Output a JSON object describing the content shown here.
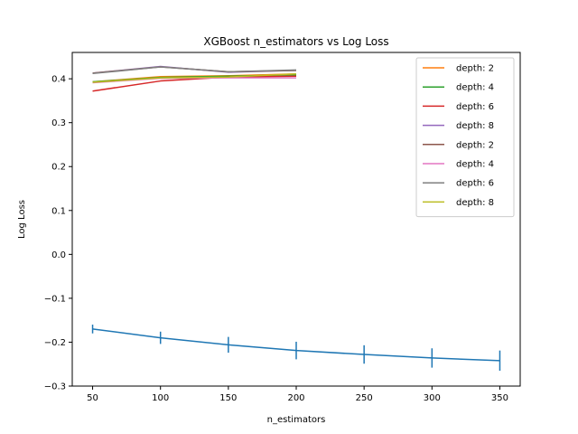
{
  "chart_data": {
    "type": "line",
    "title": "XGBoost n_estimators vs Log Loss",
    "xlabel": "n_estimators",
    "ylabel": "Log Loss",
    "xlim": [
      35,
      365
    ],
    "ylim": [
      -0.3,
      0.46
    ],
    "xticks": [
      50,
      100,
      150,
      200,
      250,
      300,
      350
    ],
    "xtick_labels": [
      "50",
      "100",
      "150",
      "200",
      "250",
      "300",
      "350"
    ],
    "yticks": [
      -0.3,
      -0.2,
      -0.1,
      0.0,
      0.1,
      0.2,
      0.3,
      0.4
    ],
    "ytick_labels": [
      "−0.3",
      "−0.2",
      "−0.1",
      "0.0",
      "0.1",
      "0.2",
      "0.3",
      "0.4"
    ],
    "grid": false,
    "legend_position": "top-right",
    "errorbar_series": {
      "color": "#1f77b4",
      "x": [
        50,
        100,
        150,
        200,
        250,
        300,
        350
      ],
      "y": [
        -0.17,
        -0.19,
        -0.206,
        -0.219,
        -0.228,
        -0.236,
        -0.242
      ],
      "err": [
        0.01,
        0.014,
        0.018,
        0.02,
        0.021,
        0.022,
        0.023
      ]
    },
    "series": [
      {
        "name": "depth: 2",
        "color": "#ff7f0e",
        "x": [
          50,
          100,
          150,
          200
        ],
        "y": [
          0.393,
          0.405,
          0.407,
          0.411
        ]
      },
      {
        "name": "depth: 4",
        "color": "#2ca02c",
        "x": [
          50,
          100,
          150,
          200
        ],
        "y": [
          0.393,
          0.403,
          0.406,
          0.409
        ]
      },
      {
        "name": "depth: 6",
        "color": "#d62728",
        "x": [
          50,
          100,
          150,
          200
        ],
        "y": [
          0.372,
          0.395,
          0.404,
          0.406
        ]
      },
      {
        "name": "depth: 8",
        "color": "#9467bd",
        "x": [
          50,
          100,
          150,
          200
        ],
        "y": [
          0.413,
          0.428,
          0.415,
          0.419
        ]
      },
      {
        "name": "depth: 2",
        "color": "#8c564b",
        "x": [
          50,
          100,
          150,
          200
        ],
        "y": [
          0.413,
          0.427,
          0.416,
          0.419
        ]
      },
      {
        "name": "depth: 4",
        "color": "#e377c2",
        "x": [
          50,
          100,
          150,
          200
        ],
        "y": [
          0.391,
          0.401,
          0.402,
          0.402
        ]
      },
      {
        "name": "depth: 6",
        "color": "#7f7f7f",
        "x": [
          50,
          100,
          150,
          200
        ],
        "y": [
          0.412,
          0.427,
          0.416,
          0.42
        ]
      },
      {
        "name": "depth: 8",
        "color": "#bcbd22",
        "x": [
          50,
          100,
          150,
          200
        ],
        "y": [
          0.392,
          0.402,
          0.404,
          0.411
        ]
      }
    ]
  }
}
